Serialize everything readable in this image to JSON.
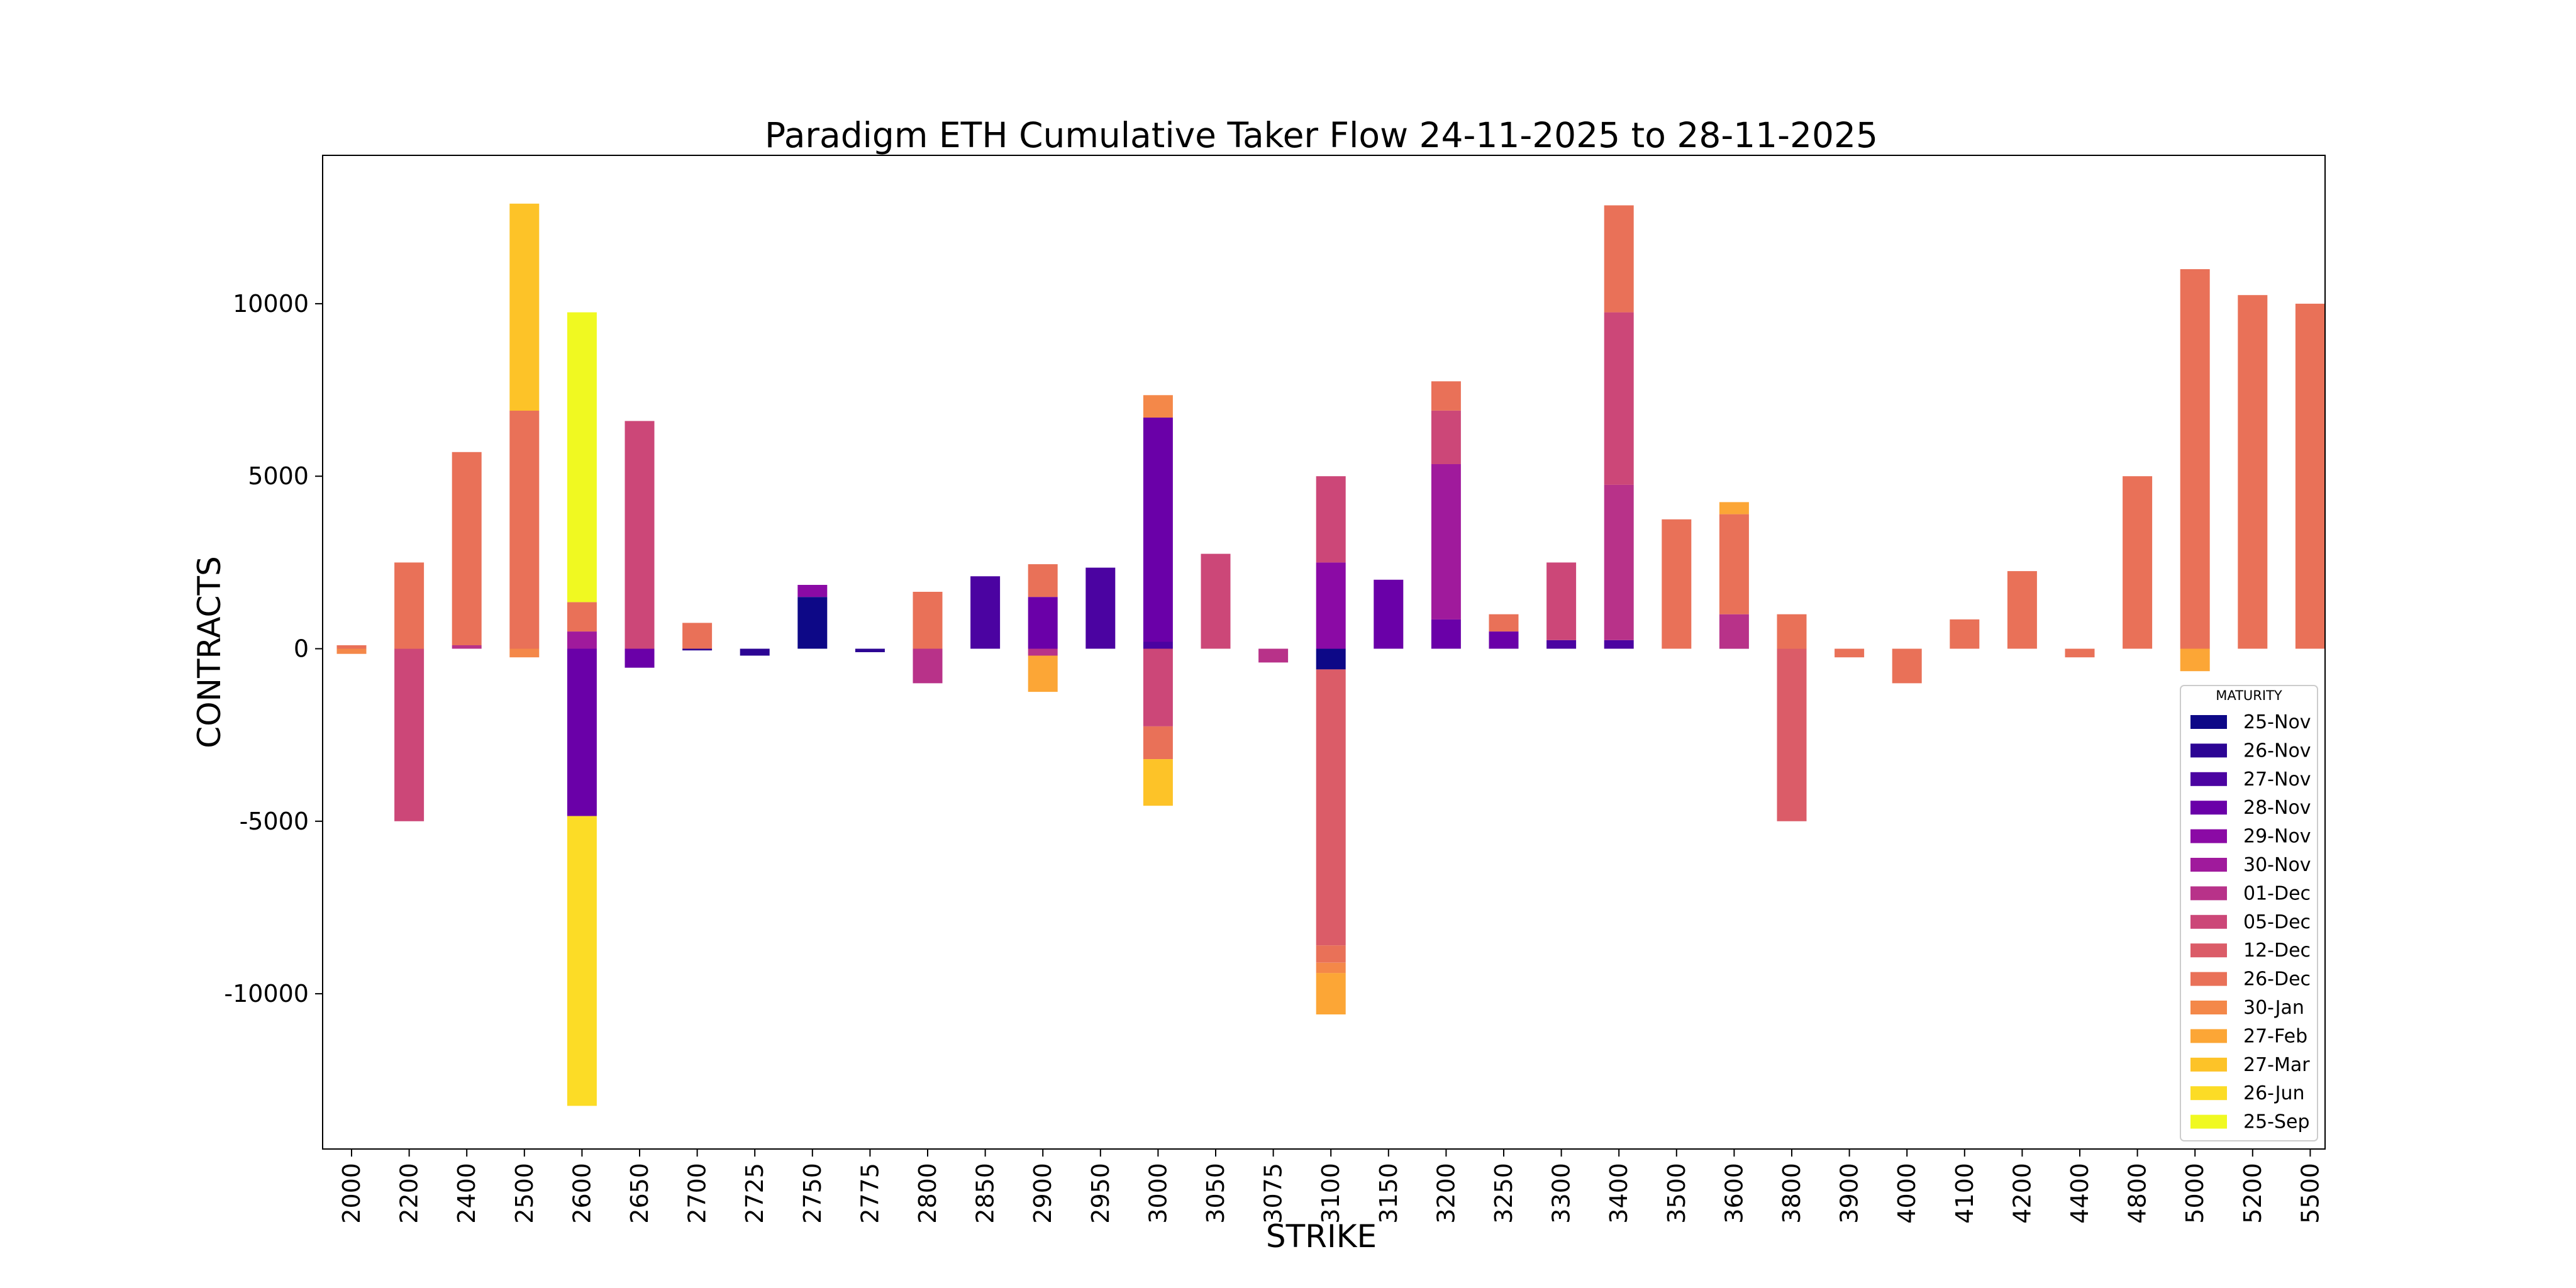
{
  "chart_data": {
    "type": "bar",
    "stacked": true,
    "title": "Paradigm ETH Cumulative Taker Flow 24-11-2025 to 28-11-2025",
    "xlabel": "STRIKE",
    "ylabel": "CONTRACTS",
    "ylim": [
      -14500,
      14300
    ],
    "yticks": [
      -10000,
      -5000,
      0,
      5000,
      10000
    ],
    "ytick_labels": [
      "-10000",
      "-5000",
      "0",
      "5000",
      "10000"
    ],
    "legend_title": "MATURITY",
    "legend_position": "lower-right",
    "categories": [
      "2000",
      "2200",
      "2400",
      "2500",
      "2600",
      "2650",
      "2700",
      "2725",
      "2750",
      "2775",
      "2800",
      "2850",
      "2900",
      "2950",
      "3000",
      "3050",
      "3075",
      "3100",
      "3150",
      "3200",
      "3250",
      "3300",
      "3400",
      "3500",
      "3600",
      "3800",
      "3900",
      "4000",
      "4100",
      "4200",
      "4400",
      "4800",
      "5000",
      "5200",
      "5500"
    ],
    "series": [
      {
        "name": "25-Nov",
        "color": "#0d0887",
        "values": [
          0,
          0,
          0,
          0,
          0,
          0,
          0,
          0,
          1500,
          0,
          0,
          0,
          0,
          0,
          0,
          0,
          0,
          -600,
          0,
          0,
          0,
          0,
          0,
          0,
          0,
          0,
          0,
          0,
          0,
          0,
          0,
          0,
          0,
          0,
          0
        ]
      },
      {
        "name": "26-Nov",
        "color": "#2c0594",
        "values": [
          0,
          0,
          0,
          0,
          0,
          0,
          -50,
          -200,
          0,
          -100,
          0,
          0,
          0,
          0,
          0,
          0,
          0,
          0,
          0,
          0,
          0,
          0,
          0,
          0,
          0,
          0,
          0,
          0,
          0,
          0,
          0,
          0,
          0,
          0,
          0
        ]
      },
      {
        "name": "27-Nov",
        "color": "#4b03a1",
        "values": [
          0,
          0,
          0,
          0,
          0,
          0,
          0,
          0,
          0,
          0,
          0,
          2100,
          0,
          2350,
          200,
          0,
          0,
          0,
          0,
          0,
          0,
          250,
          250,
          0,
          0,
          0,
          0,
          0,
          0,
          0,
          0,
          0,
          0,
          0,
          0
        ]
      },
      {
        "name": "28-Nov",
        "color": "#6a00a8",
        "values": [
          0,
          0,
          0,
          0,
          -4850,
          -550,
          0,
          0,
          0,
          0,
          0,
          0,
          1500,
          0,
          6500,
          0,
          0,
          0,
          2000,
          850,
          500,
          0,
          0,
          0,
          0,
          0,
          0,
          0,
          0,
          0,
          0,
          0,
          0,
          0,
          0
        ]
      },
      {
        "name": "29-Nov",
        "color": "#8b0aa5",
        "values": [
          0,
          0,
          0,
          0,
          0,
          0,
          0,
          0,
          350,
          0,
          0,
          0,
          0,
          0,
          0,
          0,
          0,
          2500,
          0,
          0,
          0,
          0,
          0,
          0,
          0,
          0,
          0,
          0,
          0,
          0,
          0,
          0,
          0,
          0,
          0
        ]
      },
      {
        "name": "30-Nov",
        "color": "#a01a9c",
        "values": [
          0,
          0,
          0,
          0,
          500,
          0,
          0,
          0,
          0,
          0,
          0,
          0,
          0,
          0,
          0,
          0,
          0,
          0,
          0,
          4500,
          0,
          0,
          0,
          0,
          0,
          0,
          0,
          0,
          0,
          0,
          0,
          0,
          0,
          0,
          0
        ]
      },
      {
        "name": "01-Dec",
        "color": "#b83289",
        "values": [
          0,
          0,
          100,
          0,
          0,
          0,
          0,
          0,
          0,
          0,
          -1000,
          0,
          -200,
          0,
          0,
          0,
          -400,
          0,
          0,
          0,
          0,
          0,
          4500,
          0,
          1000,
          0,
          0,
          0,
          0,
          0,
          0,
          0,
          0,
          0,
          0
        ]
      },
      {
        "name": "05-Dec",
        "color": "#cc4778",
        "values": [
          0,
          -5000,
          0,
          0,
          0,
          6600,
          0,
          0,
          0,
          0,
          0,
          0,
          0,
          0,
          -2250,
          2750,
          0,
          2500,
          0,
          1550,
          0,
          2250,
          5000,
          0,
          0,
          0,
          0,
          0,
          0,
          0,
          0,
          0,
          0,
          0,
          0
        ]
      },
      {
        "name": "12-Dec",
        "color": "#db5c68",
        "values": [
          0,
          0,
          0,
          0,
          0,
          0,
          0,
          0,
          0,
          0,
          0,
          0,
          0,
          0,
          0,
          0,
          0,
          -8000,
          0,
          0,
          0,
          0,
          0,
          0,
          0,
          -5000,
          0,
          0,
          0,
          0,
          0,
          0,
          0,
          0,
          0
        ]
      },
      {
        "name": "26-Dec",
        "color": "#e97158",
        "values": [
          100,
          2500,
          5600,
          6900,
          850,
          0,
          750,
          0,
          0,
          0,
          1650,
          0,
          950,
          0,
          -950,
          0,
          0,
          -500,
          0,
          850,
          500,
          0,
          3100,
          3750,
          2900,
          1000,
          -250,
          -1000,
          850,
          2250,
          -250,
          5000,
          11000,
          10250,
          10000
        ]
      },
      {
        "name": "30-Jan",
        "color": "#f48849",
        "values": [
          -150,
          0,
          0,
          -250,
          0,
          0,
          0,
          0,
          0,
          0,
          0,
          0,
          0,
          0,
          650,
          0,
          0,
          -300,
          0,
          0,
          0,
          0,
          0,
          0,
          0,
          0,
          0,
          0,
          0,
          0,
          0,
          0,
          0,
          0,
          0
        ]
      },
      {
        "name": "27-Feb",
        "color": "#fca636",
        "values": [
          0,
          0,
          0,
          0,
          0,
          0,
          0,
          0,
          0,
          0,
          0,
          0,
          -1050,
          0,
          0,
          0,
          0,
          -1200,
          0,
          0,
          0,
          0,
          0,
          0,
          350,
          0,
          0,
          0,
          0,
          0,
          0,
          0,
          -650,
          0,
          0
        ]
      },
      {
        "name": "27-Mar",
        "color": "#fdc328",
        "values": [
          0,
          0,
          0,
          6000,
          0,
          0,
          0,
          0,
          0,
          0,
          0,
          0,
          0,
          0,
          -1350,
          0,
          0,
          0,
          0,
          0,
          0,
          0,
          0,
          0,
          0,
          0,
          0,
          0,
          0,
          0,
          0,
          0,
          0,
          0,
          0
        ]
      },
      {
        "name": "26-Jun",
        "color": "#fcdc26",
        "values": [
          0,
          0,
          0,
          0,
          -8400,
          0,
          0,
          0,
          0,
          0,
          0,
          0,
          0,
          0,
          0,
          0,
          0,
          0,
          0,
          0,
          0,
          0,
          0,
          0,
          0,
          0,
          0,
          0,
          0,
          0,
          0,
          0,
          0,
          0,
          0
        ]
      },
      {
        "name": "25-Sep",
        "color": "#f0f921",
        "values": [
          0,
          0,
          0,
          0,
          8400,
          0,
          0,
          0,
          0,
          0,
          0,
          0,
          0,
          0,
          0,
          0,
          0,
          0,
          0,
          0,
          0,
          0,
          0,
          0,
          0,
          0,
          0,
          0,
          0,
          0,
          0,
          0,
          0,
          0,
          0
        ]
      }
    ]
  }
}
